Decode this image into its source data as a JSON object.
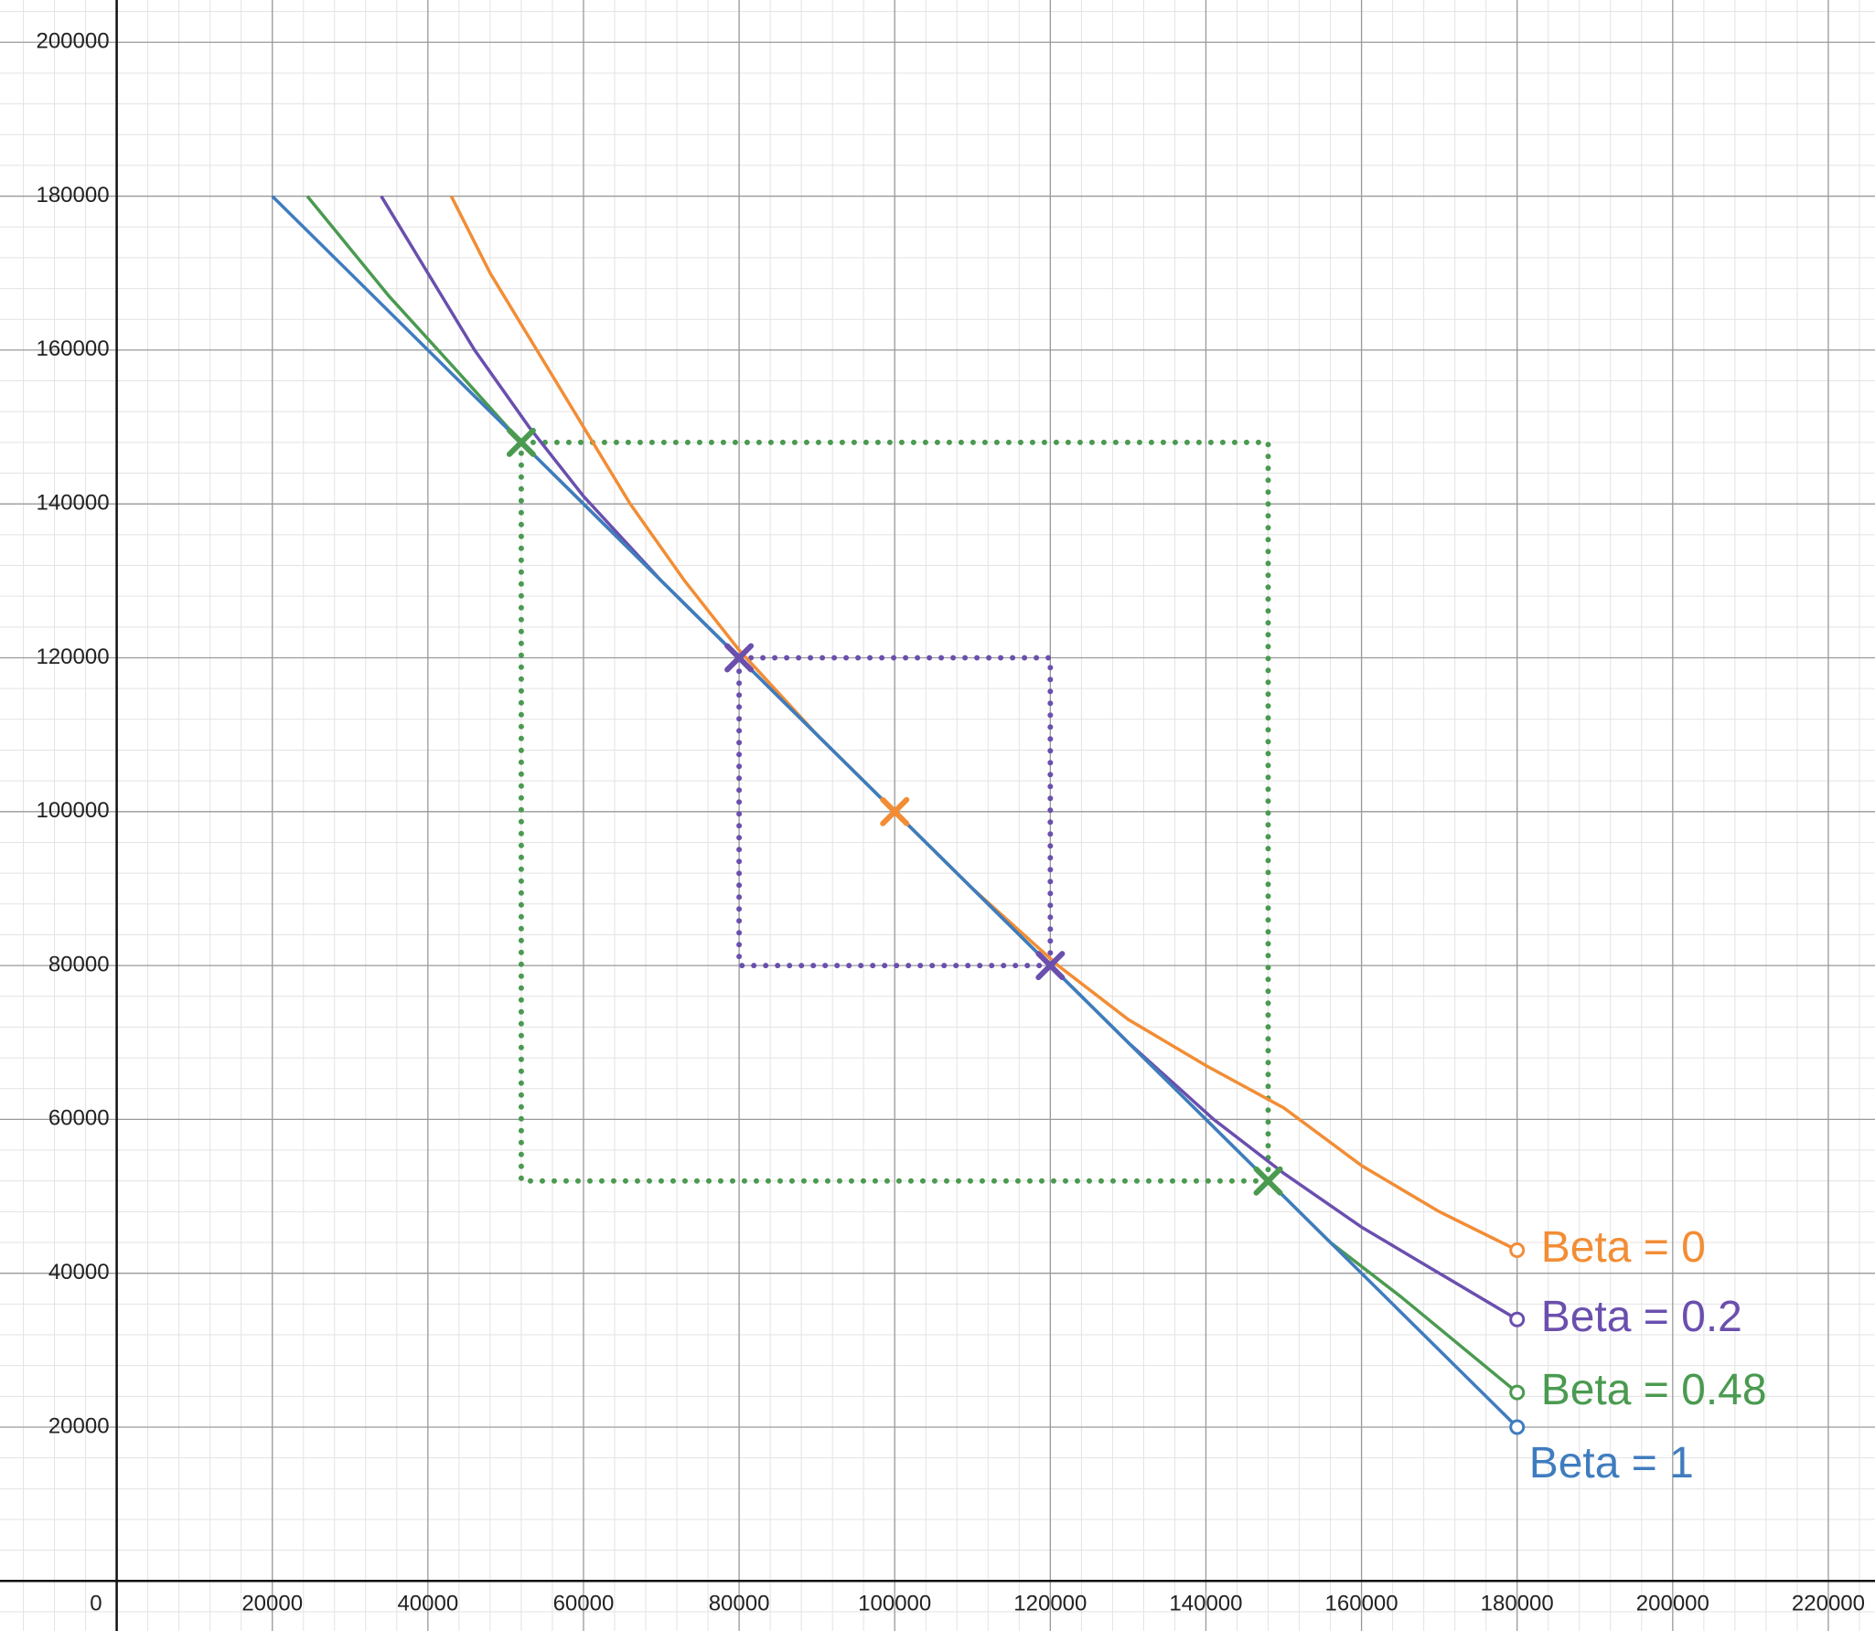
{
  "chart_data": {
    "type": "line",
    "xlim": [
      -15000,
      226000
    ],
    "ylim": [
      -6500,
      205500
    ],
    "xticks": [
      0,
      20000,
      40000,
      60000,
      80000,
      100000,
      120000,
      140000,
      160000,
      180000,
      200000,
      220000
    ],
    "yticks": [
      20000,
      40000,
      60000,
      80000,
      100000,
      120000,
      140000,
      160000,
      180000,
      200000
    ],
    "grid": true,
    "minor_grid": 4000,
    "series": [
      {
        "name": "Beta = 0",
        "color": "#f28d35",
        "x": [
          43000,
          48000,
          54000,
          60000,
          66000,
          73000,
          80000,
          90000,
          100000,
          110000,
          121000,
          130000,
          140000,
          150000,
          160000,
          170000,
          180000
        ],
        "values": [
          180000,
          170000,
          160000,
          150000,
          140000,
          130000,
          121000,
          110000,
          100000,
          90000,
          80000,
          73000,
          67000,
          61500,
          54000,
          48000,
          43000
        ]
      },
      {
        "name": "Beta = 0.2",
        "color": "#6a4fae",
        "x": [
          34000,
          40000,
          46000,
          53000,
          60000,
          70000,
          80000,
          100000,
          120000,
          130000,
          141000,
          150000,
          160000,
          170000,
          180000
        ],
        "values": [
          180000,
          170000,
          160000,
          150000,
          141000,
          130000,
          120000,
          100000,
          80000,
          70000,
          60000,
          53000,
          46000,
          40000,
          34000
        ]
      },
      {
        "name": "Beta = 0.48",
        "color": "#4a9a50",
        "x": [
          24500,
          35000,
          44000,
          52000,
          100000,
          148000,
          156000,
          165000,
          180000
        ],
        "values": [
          180000,
          167000,
          157000,
          148000,
          100000,
          52000,
          44000,
          37000,
          24500
        ]
      },
      {
        "name": "Beta = 1",
        "color": "#3f7cbf",
        "x": [
          20000,
          180000
        ],
        "values": [
          180000,
          20000
        ]
      }
    ],
    "markers": [
      {
        "x": 52000,
        "y": 148000,
        "color": "#4a9a50"
      },
      {
        "x": 148000,
        "y": 52000,
        "color": "#4a9a50"
      },
      {
        "x": 80000,
        "y": 120000,
        "color": "#6a4fae"
      },
      {
        "x": 120000,
        "y": 80000,
        "color": "#6a4fae"
      },
      {
        "x": 100000,
        "y": 100000,
        "color": "#f28d35"
      }
    ],
    "boxes": [
      {
        "x": [
          52000,
          148000
        ],
        "y": [
          52000,
          148000
        ],
        "color": "#4a9a50"
      },
      {
        "x": [
          80000,
          120000
        ],
        "y": [
          80000,
          120000
        ],
        "color": "#6a4fae"
      }
    ]
  }
}
